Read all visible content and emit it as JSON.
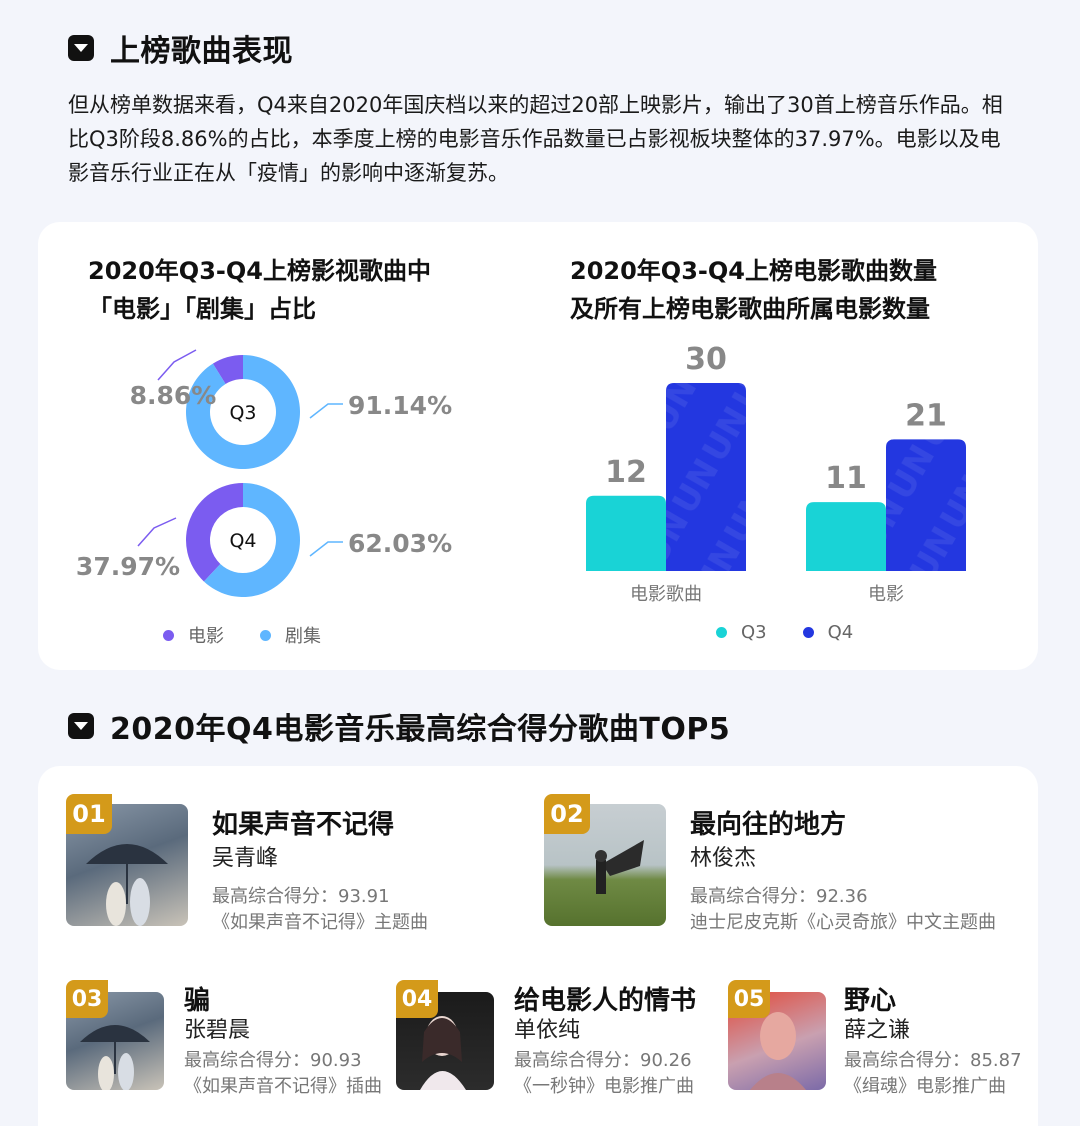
{
  "section1": {
    "title": "上榜歌曲表现"
  },
  "intro": "但从榜单数据来看，Q4来自2020年国庆档以来的超过20部上映影片，输出了30首上榜音乐作品。相比Q3阶段8.86%的占比，本季度上榜的电影音乐作品数量已占影视板块整体的37.97%。电影以及电影音乐行业正在从「疫情」的影响中逐渐复苏。",
  "colors": {
    "film": "#7b5cf0",
    "drama": "#5fb6ff",
    "q3": "#19d3d6",
    "q4": "#2337e0"
  },
  "chart_data": [
    {
      "type": "pie",
      "title_line1": "2020年Q3-Q4上榜影视歌曲中",
      "title_line2": "「电影」「剧集」占比",
      "rings": [
        {
          "name": "Q3",
          "slices": [
            {
              "label": "电影",
              "value": 8.86,
              "text": "8.86%"
            },
            {
              "label": "剧集",
              "value": 91.14,
              "text": "91.14%"
            }
          ]
        },
        {
          "name": "Q4",
          "slices": [
            {
              "label": "电影",
              "value": 37.97,
              "text": "37.97%"
            },
            {
              "label": "剧集",
              "value": 62.03,
              "text": "62.03%"
            }
          ]
        }
      ],
      "legend": [
        "电影",
        "剧集"
      ]
    },
    {
      "type": "bar",
      "title_line1": "2020年Q3-Q4上榜电影歌曲数量",
      "title_line2": "及所有上榜电影歌曲所属电影数量",
      "categories": [
        "电影歌曲",
        "电影"
      ],
      "series": [
        {
          "name": "Q3",
          "values": [
            12,
            11
          ]
        },
        {
          "name": "Q4",
          "values": [
            30,
            21
          ]
        }
      ],
      "ylim": [
        0,
        30
      ]
    }
  ],
  "section2": {
    "title": "2020年Q4电影音乐最高综合得分歌曲TOP5"
  },
  "songs": [
    {
      "rank": "01",
      "title": "如果声音不记得",
      "artist": "吴青峰",
      "score": "最高综合得分：93.91",
      "desc": "《如果声音不记得》主题曲"
    },
    {
      "rank": "02",
      "title": "最向往的地方",
      "artist": "林俊杰",
      "score": "最高综合得分：92.36",
      "desc": "迪士尼皮克斯《心灵奇旅》中文主题曲"
    },
    {
      "rank": "03",
      "title": "骗",
      "artist": "张碧晨",
      "score": "最高综合得分：90.93",
      "desc": "《如果声音不记得》插曲"
    },
    {
      "rank": "04",
      "title": "给电影人的情书",
      "artist": "单依纯",
      "score": "最高综合得分：90.26",
      "desc": "《一秒钟》电影推广曲"
    },
    {
      "rank": "05",
      "title": "野心",
      "artist": "薛之谦",
      "score": "最高综合得分：85.87",
      "desc": "《缉魂》电影推广曲"
    }
  ]
}
